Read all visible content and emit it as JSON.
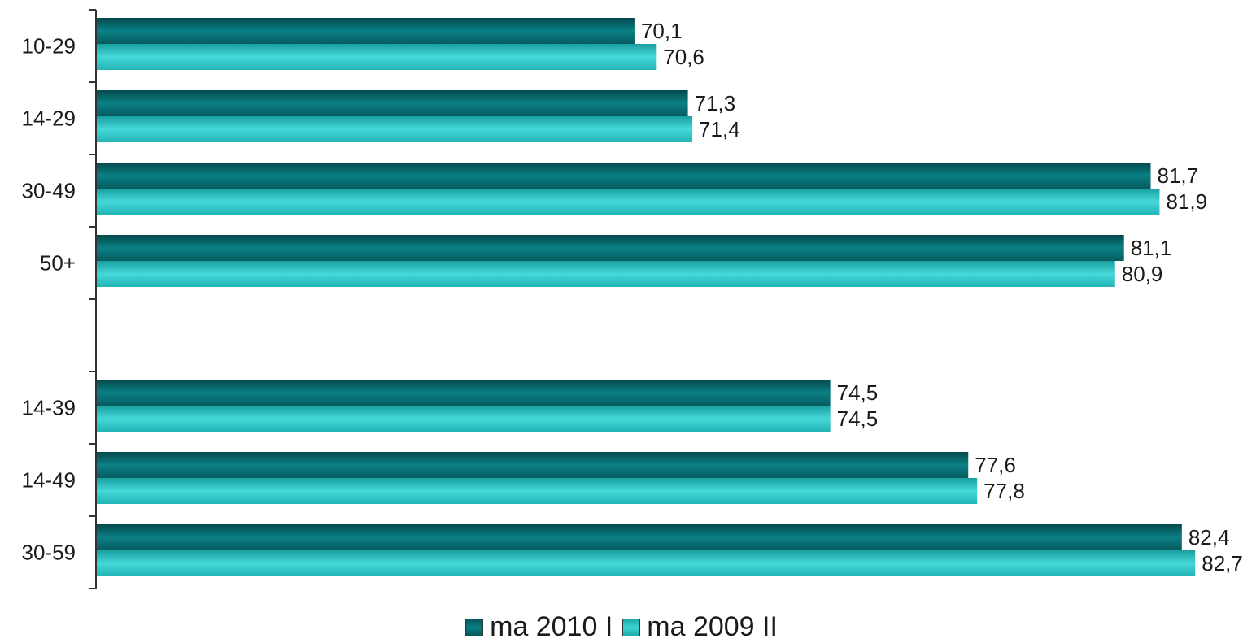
{
  "chart_data": {
    "type": "bar",
    "orientation": "horizontal",
    "categories": [
      "10-29",
      "14-29",
      "30-49",
      "50+",
      "",
      "14-39",
      "14-49",
      "30-59"
    ],
    "series": [
      {
        "name": "ma 2010 I",
        "values": [
          70.1,
          71.3,
          81.7,
          81.1,
          null,
          74.5,
          77.6,
          82.4
        ],
        "labels": [
          "70,1",
          "71,3",
          "81,7",
          "81,1",
          "",
          "74,5",
          "77,6",
          "82,4"
        ]
      },
      {
        "name": "ma 2009 II",
        "values": [
          70.6,
          71.4,
          81.9,
          80.9,
          null,
          74.5,
          77.8,
          82.7
        ],
        "labels": [
          "70,6",
          "71,4",
          "81,9",
          "80,9",
          "",
          "74,5",
          "77,8",
          "82,7"
        ]
      }
    ],
    "xlim": [
      58,
      83.5
    ],
    "grid": false,
    "legend_position": "bottom",
    "colors": {
      "series_0": "#0a7378",
      "series_1": "#2ec4c4",
      "axis": "#333333"
    }
  }
}
